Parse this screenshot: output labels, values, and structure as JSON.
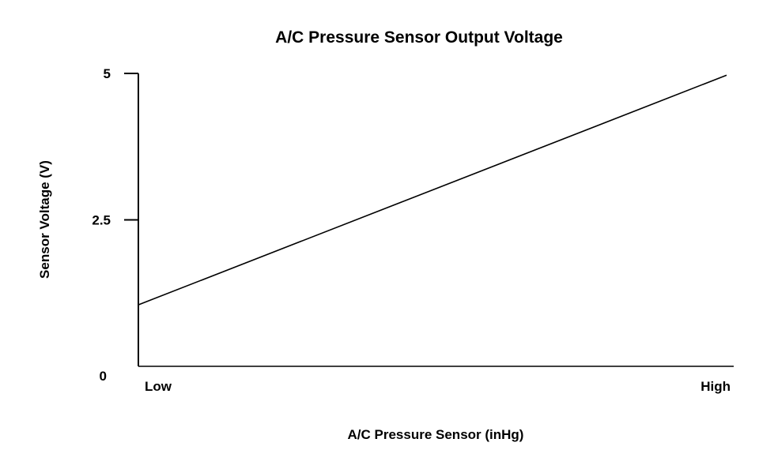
{
  "chart_data": {
    "type": "line",
    "title": "A/C Pressure Sensor Output Voltage",
    "xlabel": "A/C Pressure Sensor (inHg)",
    "ylabel": "Sensor Voltage (V)",
    "x_tick_labels": [
      "Low",
      "High"
    ],
    "y_ticks": [
      {
        "value": 5,
        "label": "5"
      },
      {
        "value": 2.5,
        "label": "2.5"
      },
      {
        "value": 0,
        "label": "0"
      }
    ],
    "xlim": [
      0,
      1
    ],
    "ylim": [
      0,
      5
    ],
    "grid": false,
    "series": [
      {
        "name": "Sensor Voltage",
        "x": [
          0,
          1
        ],
        "y": [
          1.05,
          4.97
        ],
        "color": "#000000"
      }
    ]
  }
}
